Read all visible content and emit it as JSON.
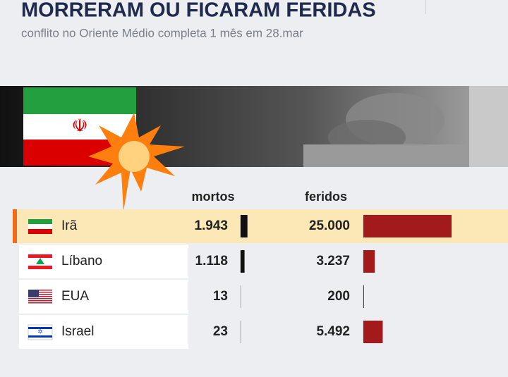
{
  "chart_data": {
    "type": "bar-table",
    "title": "MORRERAM OU FICARAM FERIDAS",
    "subtitle": "conflito no Oriente Médio completa 1 mês em 28.mar",
    "categories": [
      "Irã",
      "Líbano",
      "EUA",
      "Israel"
    ],
    "series": [
      {
        "name": "mortos",
        "color": "#111111",
        "values": [
          1943,
          1118,
          13,
          23
        ],
        "value_labels": [
          "1.943",
          "1.118",
          "13",
          "23"
        ]
      },
      {
        "name": "feridos",
        "color": "#a31a1a",
        "values": [
          25000,
          3237,
          200,
          5492
        ],
        "value_labels": [
          "25.000",
          "3.237",
          "200",
          "5.492"
        ]
      }
    ]
  }
}
